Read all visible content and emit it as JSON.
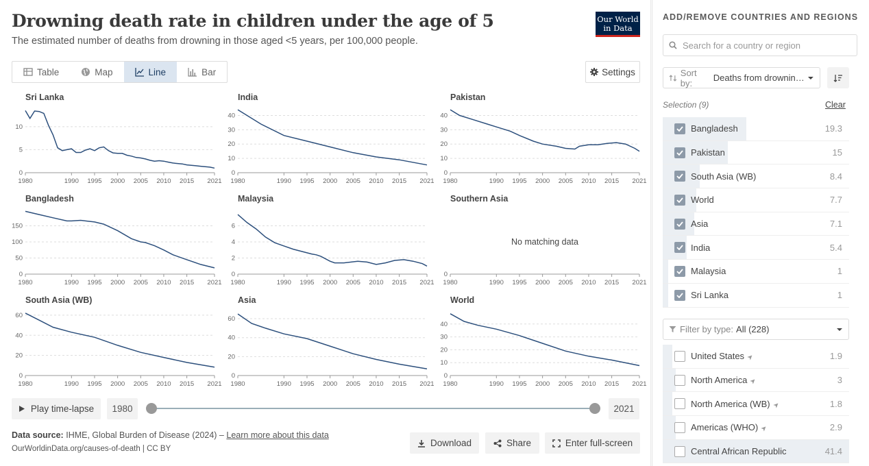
{
  "header": {
    "title": "Drowning death rate in children under the age of 5",
    "subtitle": "The estimated number of deaths from drowning in those aged <5 years, per 100,000 people.",
    "logo_line1": "Our World",
    "logo_line2": "in Data"
  },
  "tabs": [
    {
      "label": "Table",
      "icon": "table-icon",
      "active": false
    },
    {
      "label": "Map",
      "icon": "globe-icon",
      "active": false
    },
    {
      "label": "Line",
      "icon": "line-chart-icon",
      "active": true
    },
    {
      "label": "Bar",
      "icon": "bar-chart-icon",
      "active": false
    }
  ],
  "settings_label": "Settings",
  "colors": {
    "line": "#2c4f7c",
    "accent_bg": "#dbe5f0",
    "logo_bg": "#002147",
    "logo_stripe": "#ce261e"
  },
  "chart_data": [
    {
      "type": "line",
      "title": "Sri Lanka",
      "x": [
        1980,
        1981,
        1982,
        1983,
        1984,
        1985,
        1986,
        1987,
        1988,
        1989,
        1990,
        1991,
        1992,
        1993,
        1994,
        1995,
        1996,
        1997,
        1998,
        1999,
        2000,
        2001,
        2002,
        2003,
        2004,
        2005,
        2006,
        2007,
        2008,
        2009,
        2010,
        2011,
        2012,
        2013,
        2014,
        2015,
        2016,
        2017,
        2018,
        2019,
        2020,
        2021
      ],
      "values": [
        13.5,
        11.8,
        13.4,
        13.3,
        12.9,
        10.3,
        8.2,
        5.4,
        4.8,
        5.0,
        5.2,
        4.4,
        4.4,
        4.9,
        5.2,
        4.8,
        5.4,
        5.6,
        4.8,
        4.3,
        4.2,
        4.2,
        3.8,
        3.6,
        3.3,
        3.2,
        3.0,
        2.7,
        2.5,
        2.6,
        2.5,
        2.3,
        2.1,
        2.0,
        1.9,
        1.7,
        1.6,
        1.5,
        1.4,
        1.3,
        1.2,
        1.0
      ],
      "yticks": [
        0,
        5,
        10
      ],
      "ylim": [
        0,
        14
      ],
      "xticks": [
        1980,
        1990,
        1995,
        2000,
        2005,
        2010,
        2015,
        2021
      ]
    },
    {
      "type": "line",
      "title": "India",
      "x": [
        1980,
        1985,
        1990,
        1995,
        2000,
        2005,
        2010,
        2015,
        2021
      ],
      "values": [
        44,
        34,
        26,
        22,
        18,
        14,
        11,
        9,
        5.4
      ],
      "yticks": [
        0,
        10,
        20,
        30,
        40
      ],
      "ylim": [
        0,
        45
      ],
      "xticks": [
        1980,
        1990,
        1995,
        2000,
        2005,
        2010,
        2015,
        2021
      ]
    },
    {
      "type": "line",
      "title": "Pakistan",
      "x": [
        1980,
        1982,
        1985,
        1988,
        1990,
        1993,
        1995,
        1998,
        2000,
        2003,
        2005,
        2007,
        2008,
        2010,
        2012,
        2014,
        2016,
        2018,
        2020,
        2021
      ],
      "values": [
        44,
        40,
        37,
        34,
        32,
        29,
        26,
        22,
        20,
        18.5,
        17,
        16.5,
        18.5,
        19.5,
        19.5,
        20.5,
        21,
        20,
        17,
        15
      ],
      "yticks": [
        0,
        10,
        20,
        30,
        40
      ],
      "ylim": [
        0,
        45
      ],
      "xticks": [
        1980,
        1990,
        1995,
        2000,
        2005,
        2010,
        2015,
        2021
      ]
    },
    {
      "type": "line",
      "title": "Bangladesh",
      "x": [
        1980,
        1983,
        1986,
        1989,
        1990,
        1992,
        1995,
        1997,
        2000,
        2003,
        2005,
        2006,
        2008,
        2010,
        2012,
        2015,
        2018,
        2021
      ],
      "values": [
        195,
        185,
        175,
        165,
        165,
        167,
        162,
        155,
        135,
        110,
        100,
        98,
        88,
        75,
        60,
        45,
        30,
        19.3
      ],
      "yticks": [
        0,
        50,
        100,
        150
      ],
      "ylim": [
        0,
        200
      ],
      "xticks": [
        1980,
        1990,
        1995,
        2000,
        2005,
        2010,
        2015,
        2021
      ]
    },
    {
      "type": "line",
      "title": "Malaysia",
      "x": [
        1980,
        1982,
        1984,
        1986,
        1988,
        1990,
        1992,
        1994,
        1996,
        1997,
        1998,
        2000,
        2001,
        2003,
        2006,
        2008,
        2010,
        2012,
        2014,
        2016,
        2018,
        2020,
        2021
      ],
      "values": [
        7.4,
        6.4,
        5.6,
        4.6,
        3.9,
        3.5,
        3.1,
        2.8,
        2.5,
        2.4,
        2.2,
        1.6,
        1.4,
        1.4,
        1.6,
        1.5,
        1.2,
        1.4,
        1.7,
        1.8,
        1.6,
        1.3,
        1.0
      ],
      "yticks": [
        0,
        2,
        4,
        6
      ],
      "ylim": [
        0,
        8
      ],
      "xticks": [
        1980,
        1990,
        1995,
        2000,
        2005,
        2010,
        2015,
        2021
      ]
    },
    {
      "type": "line",
      "title": "Southern Asia",
      "x": [],
      "values": [],
      "note": "No matching data",
      "yticks": [
        0
      ],
      "ylim": [
        0,
        1
      ],
      "xticks": [
        1980,
        1990,
        1995,
        2000,
        2005,
        2010,
        2015,
        2021
      ]
    },
    {
      "type": "line",
      "title": "South Asia (WB)",
      "x": [
        1980,
        1983,
        1986,
        1990,
        1995,
        2000,
        2005,
        2010,
        2015,
        2021
      ],
      "values": [
        62,
        55,
        48,
        43,
        38,
        30,
        23,
        18,
        13,
        8.4
      ],
      "yticks": [
        0,
        20,
        40,
        60
      ],
      "ylim": [
        0,
        64
      ],
      "xticks": [
        1980,
        1990,
        1995,
        2000,
        2005,
        2010,
        2015,
        2021
      ]
    },
    {
      "type": "line",
      "title": "Asia",
      "x": [
        1980,
        1983,
        1986,
        1990,
        1995,
        2000,
        2005,
        2010,
        2015,
        2021
      ],
      "values": [
        65,
        55,
        50,
        44,
        39,
        31,
        23,
        17,
        12,
        7.1
      ],
      "yticks": [
        0,
        20,
        40,
        60
      ],
      "ylim": [
        0,
        68
      ],
      "xticks": [
        1980,
        1990,
        1995,
        2000,
        2005,
        2010,
        2015,
        2021
      ]
    },
    {
      "type": "line",
      "title": "World",
      "x": [
        1980,
        1983,
        1986,
        1990,
        1995,
        2000,
        2005,
        2010,
        2015,
        2021
      ],
      "values": [
        48,
        42,
        39,
        36,
        31,
        25,
        19,
        15,
        12,
        7.7
      ],
      "yticks": [
        0,
        10,
        20,
        30,
        40
      ],
      "ylim": [
        0,
        50
      ],
      "xticks": [
        1980,
        1990,
        1995,
        2000,
        2005,
        2010,
        2015,
        2021
      ]
    }
  ],
  "timeline": {
    "play_label": "Play time-lapse",
    "start": "1980",
    "end": "2021"
  },
  "footer": {
    "source_label": "Data source:",
    "source_text": "IHME, Global Burden of Disease (2024) – ",
    "learn_more": "Learn more about this data",
    "url": "OurWorldinData.org/causes-of-death | CC BY",
    "download": "Download",
    "share": "Share",
    "fullscreen": "Enter full-screen"
  },
  "sidebar": {
    "header": "ADD/REMOVE COUNTRIES AND REGIONS",
    "search_placeholder": "Search for a country or region",
    "sort_label": "Sort by:",
    "sort_value": "Deaths from drowning...",
    "selection_label": "Selection (9)",
    "clear_label": "Clear",
    "selected": [
      {
        "name": "Bangladesh",
        "value": "19.3",
        "frac": 0.45
      },
      {
        "name": "Pakistan",
        "value": "15",
        "frac": 0.35
      },
      {
        "name": "South Asia (WB)",
        "value": "8.4",
        "frac": 0.2
      },
      {
        "name": "World",
        "value": "7.7",
        "frac": 0.18
      },
      {
        "name": "Asia",
        "value": "7.1",
        "frac": 0.17
      },
      {
        "name": "India",
        "value": "5.4",
        "frac": 0.13
      },
      {
        "name": "Malaysia",
        "value": "1",
        "frac": 0.03
      },
      {
        "name": "Sri Lanka",
        "value": "1",
        "frac": 0.03
      }
    ],
    "filter_label": "Filter by type:",
    "filter_value": "All (228)",
    "available": [
      {
        "name": "United States",
        "value": "1.9",
        "frac": 0.05
      },
      {
        "name": "North America",
        "value": "3",
        "frac": 0.07
      },
      {
        "name": "North America (WB)",
        "value": "1.8",
        "frac": 0.05
      },
      {
        "name": "Americas (WHO)",
        "value": "2.9",
        "frac": 0.07
      },
      {
        "name": "Central African Republic",
        "value": "41.4",
        "frac": 1.0
      }
    ]
  }
}
